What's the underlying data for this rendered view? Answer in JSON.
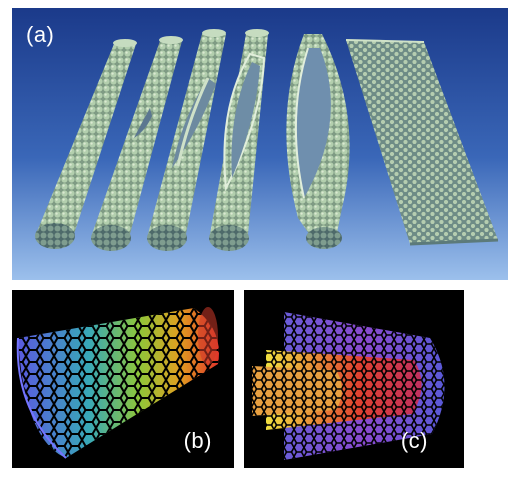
{
  "figure": {
    "panels": [
      {
        "id": "a",
        "label": "(a)"
      },
      {
        "id": "b",
        "label": "(b)"
      },
      {
        "id": "c",
        "label": "(c)"
      }
    ]
  },
  "colors": {
    "panel_a_background_top": "#1c3f8f",
    "panel_a_background_bottom": "#8fb6e6",
    "tube_atoms": "#a9c6a2",
    "panel_bc_background": "#000000"
  }
}
